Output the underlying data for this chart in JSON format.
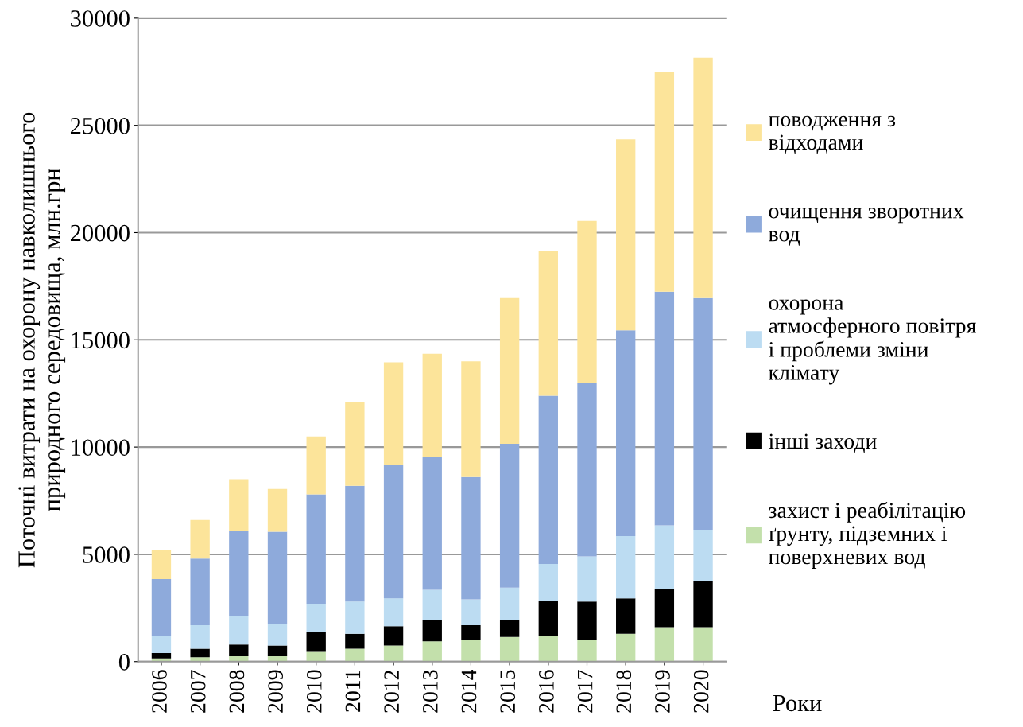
{
  "chart_data": {
    "type": "bar",
    "stacked": true,
    "xlabel": "Роки",
    "ylabel": "Поточні витрати на охорону навколишнього\nприродного середовища, млн.грн",
    "categories": [
      "2006",
      "2007",
      "2008",
      "2009",
      "2010",
      "2011",
      "2012",
      "2013",
      "2014",
      "2015",
      "2016",
      "2017",
      "2018",
      "2019",
      "2020"
    ],
    "series": [
      {
        "name": "захист і реабілітацію\nґрунту, підземних і\nповерхневих вод",
        "color": "#c3e0ab",
        "values": [
          150,
          200,
          250,
          250,
          450,
          600,
          750,
          950,
          1000,
          1150,
          1200,
          1000,
          1300,
          1600,
          1600
        ]
      },
      {
        "name": "інші заходи",
        "color": "#000000",
        "values": [
          250,
          400,
          550,
          500,
          950,
          700,
          900,
          1000,
          700,
          800,
          1650,
          1800,
          1650,
          1800,
          2150
        ]
      },
      {
        "name": "охорона\nатмосферного повітря\nі проблеми зміни\nклімату",
        "color": "#bcdcf2",
        "values": [
          800,
          1100,
          1300,
          1000,
          1300,
          1500,
          1300,
          1400,
          1200,
          1500,
          1700,
          2100,
          2900,
          2950,
          2400
        ]
      },
      {
        "name": "очищення зворотних\nвод",
        "color": "#8eaadb",
        "values": [
          2650,
          3100,
          4000,
          4300,
          5100,
          5400,
          6200,
          6200,
          5700,
          6700,
          7850,
          8100,
          9600,
          10900,
          10800
        ]
      },
      {
        "name": "поводження з\nвідходами",
        "color": "#fce49a",
        "values": [
          1350,
          1800,
          2400,
          2000,
          2700,
          3900,
          4800,
          4800,
          5400,
          6800,
          6750,
          7550,
          8900,
          10250,
          11200
        ]
      }
    ],
    "ylim": [
      0,
      30000
    ],
    "yticks": [
      0,
      5000,
      10000,
      15000,
      20000,
      25000,
      30000
    ],
    "grid": "y",
    "legend": "right"
  }
}
